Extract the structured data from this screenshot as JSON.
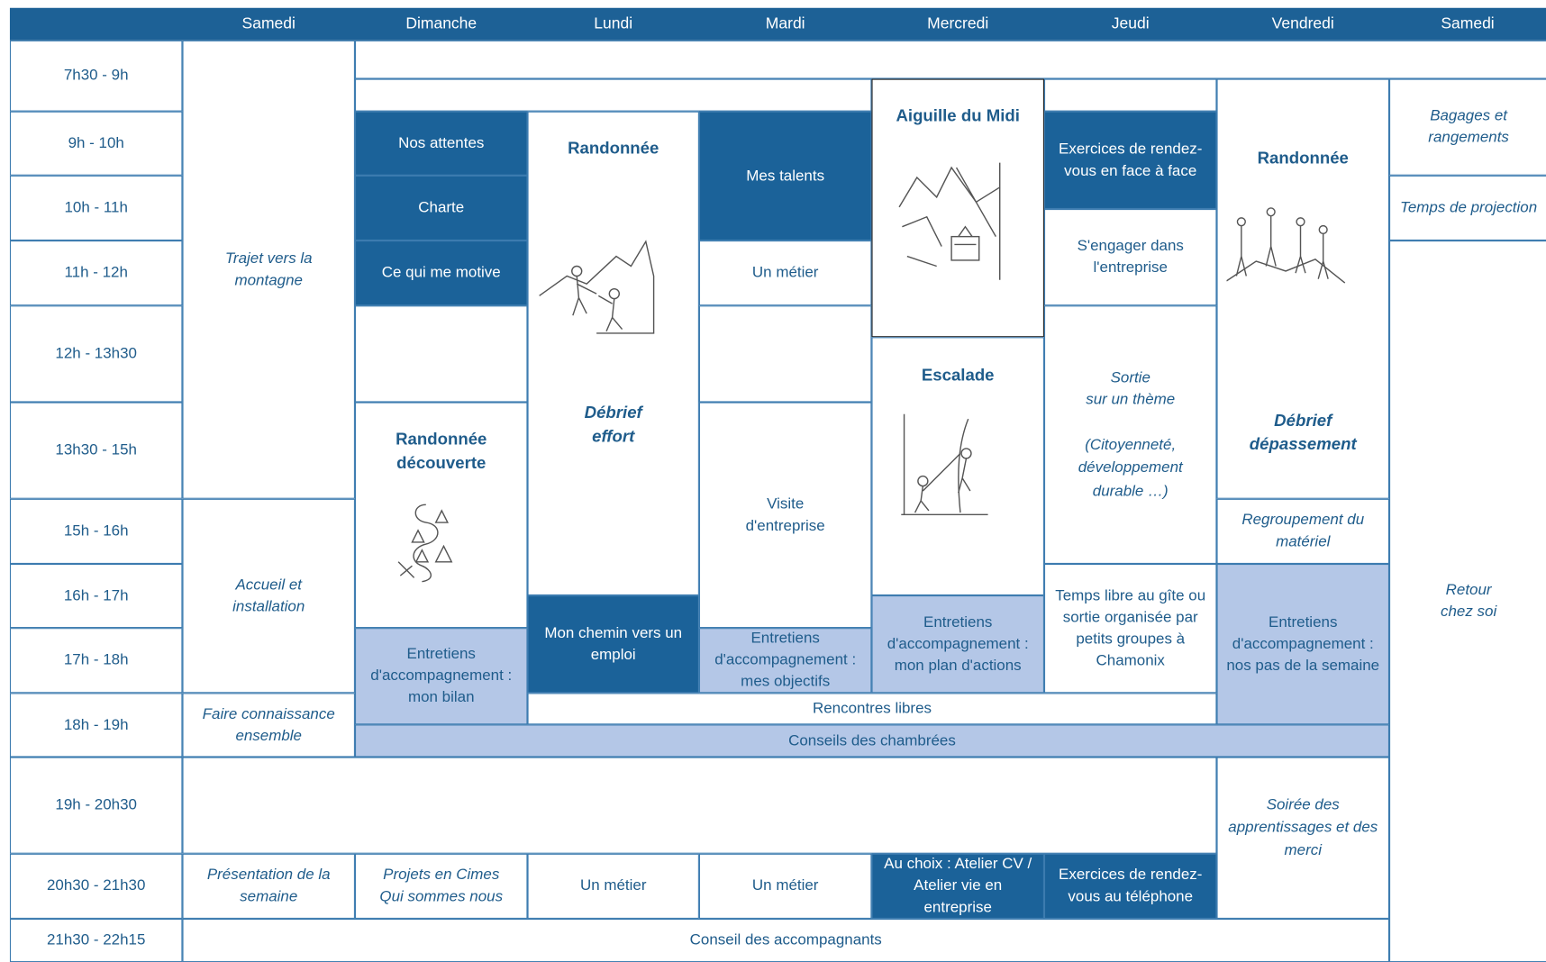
{
  "header": {
    "days": [
      "Samedi",
      "Dimanche",
      "Lundi",
      "Mardi",
      "Mercredi",
      "Jeudi",
      "Vendredi",
      "Samedi"
    ]
  },
  "times": [
    "7h30 - 9h",
    "9h - 10h",
    "10h - 11h",
    "11h - 12h",
    "12h - 13h30",
    "13h30 - 15h",
    "15h - 16h",
    "16h - 17h",
    "17h - 18h",
    "18h - 19h",
    "19h - 20h30",
    "20h30 - 21h30",
    "21h30 - 22h15"
  ],
  "cells": [
    {
      "lines": [
        "Trajet vers la",
        "montagne"
      ]
    },
    {
      "lines": [
        "Accueil et",
        "installation"
      ]
    },
    {
      "lines": [
        "Faire connaissance",
        "ensemble"
      ]
    },
    {
      "lines": [
        "Présentation de la",
        "semaine"
      ]
    },
    {
      "lines": [
        "Nos attentes"
      ]
    },
    {
      "lines": [
        "Charte"
      ]
    },
    {
      "lines": [
        "Ce qui me motive"
      ]
    },
    {
      "lines": [
        "Randonnée",
        "découverte"
      ]
    },
    {
      "lines": [
        "Entretiens",
        "d'accompagnement :",
        "mon bilan"
      ]
    },
    {
      "lines": [
        "Projets en Cimes",
        "Qui sommes nous"
      ]
    },
    {
      "lines": [
        "Randonnée",
        "Débrief",
        "effort"
      ]
    },
    {
      "lines": [
        "Mon chemin vers un",
        "emploi"
      ]
    },
    {
      "lines": [
        "Un métier"
      ]
    },
    {
      "lines": [
        "Mes talents"
      ]
    },
    {
      "lines": [
        "Un métier"
      ]
    },
    {
      "lines": [
        "Visite",
        "d'entreprise"
      ]
    },
    {
      "lines": [
        "Entretiens",
        "d'accompagnement :",
        "mes objectifs"
      ]
    },
    {
      "lines": [
        "Un métier"
      ]
    },
    {
      "lines": [
        "Aiguille du Midi"
      ]
    },
    {
      "lines": [
        "Escalade"
      ]
    },
    {
      "lines": [
        "Entretiens",
        "d'accompagnement :",
        "mon plan d'actions"
      ]
    },
    {
      "lines": [
        "Au choix : Atelier CV /",
        "Atelier vie en",
        "entreprise"
      ]
    },
    {
      "lines": [
        "Exercices de rendez-",
        "vous en face à face"
      ]
    },
    {
      "lines": [
        "S'engager dans",
        "l'entreprise"
      ]
    },
    {
      "lines": [
        "Sortie",
        "sur un thème",
        "(Citoyenneté,",
        "développement",
        "durable …)"
      ]
    },
    {
      "lines": [
        "Temps libre au gîte ou",
        "sortie organisée par",
        "petits groupes à",
        "Chamonix"
      ]
    },
    {
      "lines": [
        "Exercices de rendez-",
        "vous au téléphone"
      ]
    },
    {
      "lines": [
        "Randonnée",
        "Débrief",
        "dépassement"
      ]
    },
    {
      "lines": [
        "Regroupement du",
        "matériel"
      ]
    },
    {
      "lines": [
        "Entretiens",
        "d'accompagnement :",
        "nos pas de la semaine"
      ]
    },
    {
      "lines": [
        "Soirée des",
        "apprentissages et des",
        "merci"
      ]
    },
    {
      "lines": [
        "Bagages et",
        "rangements"
      ]
    },
    {
      "lines": [
        "Temps de projection"
      ]
    },
    {
      "lines": [
        "Retour",
        "chez soi"
      ]
    },
    {
      "lines": [
        "Rencontres libres"
      ]
    },
    {
      "lines": [
        "Conseils des chambrées"
      ]
    },
    {
      "lines": [
        "Conseil des accompagnants"
      ]
    }
  ]
}
